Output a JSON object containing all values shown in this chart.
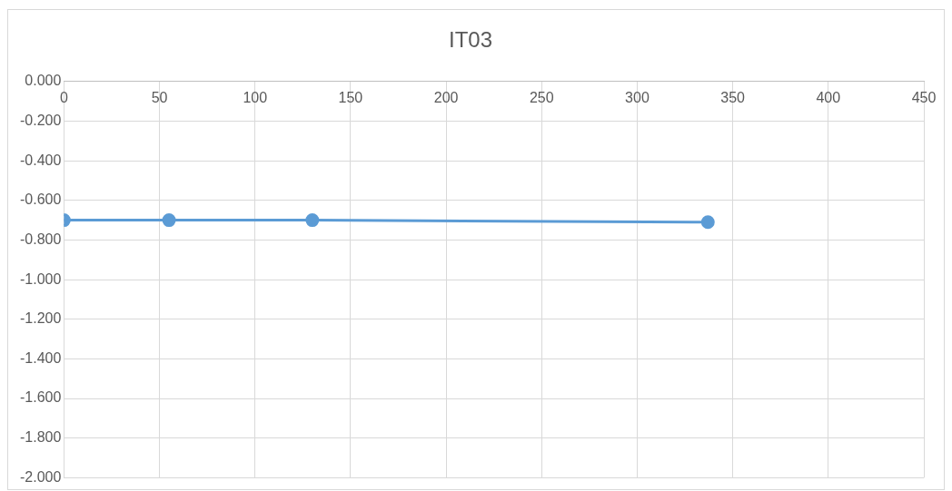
{
  "chart_data": {
    "type": "line",
    "title": "IT03",
    "x": [
      0,
      55,
      130,
      337
    ],
    "series": [
      {
        "color": "#5b9bd5",
        "values": [
          -0.7,
          -0.7,
          -0.7,
          -0.71
        ]
      }
    ],
    "xlim": [
      0,
      450
    ],
    "xticks": [
      0,
      50,
      100,
      150,
      200,
      250,
      300,
      350,
      400,
      450
    ],
    "ylim": [
      -2,
      0
    ],
    "yticks": [
      {
        "value": 0,
        "label": "0.000"
      },
      {
        "value": -0.2,
        "label": "-0.200"
      },
      {
        "value": -0.4,
        "label": "-0.400"
      },
      {
        "value": -0.6,
        "label": "-0.600"
      },
      {
        "value": -0.8,
        "label": "-0.800"
      },
      {
        "value": -1,
        "label": "-1.000"
      },
      {
        "value": -1.2,
        "label": "-1.200"
      },
      {
        "value": -1.4,
        "label": "-1.400"
      },
      {
        "value": -1.6,
        "label": "-1.600"
      },
      {
        "value": -1.8,
        "label": "-1.800"
      },
      {
        "value": -2,
        "label": "-2.000"
      }
    ],
    "grid": true,
    "legend": false,
    "marker": "circle",
    "line_style": "solid"
  }
}
